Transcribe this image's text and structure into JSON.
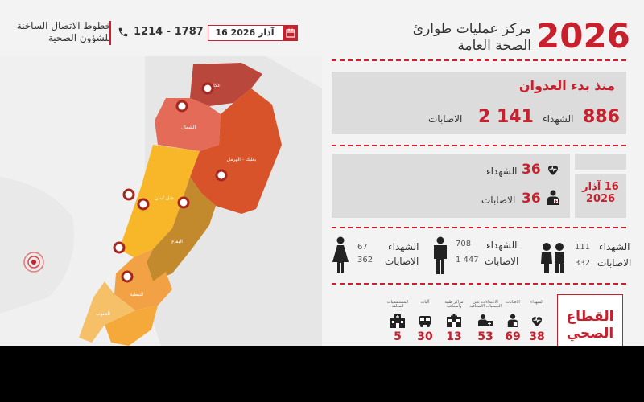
{
  "header": {
    "year": "2026",
    "title_line1": "مركز عمليات طوارئ",
    "title_line2": "الصحة العامة",
    "date": "16 آذار 2026",
    "hotline_title_line1": "خطوط الاتصال الساخنة",
    "hotline_title_line2": "للشؤون الصحية",
    "hotline_numbers": "1214 - 1787"
  },
  "since_start": {
    "heading": "منذ بدء العدوان",
    "deaths_value": "886",
    "deaths_label": "الشهداء",
    "injuries_value": "2 141",
    "injuries_label": "الاصابات"
  },
  "today": {
    "date_line1": "16 آذار",
    "date_line2": "2026",
    "deaths_value": "36",
    "deaths_label": "الشهداء",
    "injuries_value": "36",
    "injuries_label": "الاصابات"
  },
  "demographics": [
    {
      "icon": "children-icon",
      "deaths_label": "الشهداء",
      "deaths_value": "111",
      "injuries_label": "الاصابات",
      "injuries_value": "332"
    },
    {
      "icon": "man-icon",
      "deaths_label": "الشهداء",
      "deaths_value": "708",
      "injuries_label": "الاصابات",
      "injuries_value": "1 447"
    },
    {
      "icon": "woman-icon",
      "deaths_label": "الشهداء",
      "deaths_value": "67",
      "injuries_label": "الاصابات",
      "injuries_value": "362"
    }
  ],
  "health_sector": {
    "title_line1": "القطاع",
    "title_line2": "الصحي",
    "items": [
      {
        "label": "الشهداء",
        "icon": "heart-icon",
        "value": "38"
      },
      {
        "label": "الاصابات",
        "icon": "medic-icon",
        "value": "69"
      },
      {
        "label": "الاعتداءات على الجمعيات الاسعافية",
        "icon": "ambulance-attack-icon",
        "value": "53"
      },
      {
        "label": "مراكز طبية واسعافية",
        "icon": "medical-center-icon",
        "value": "13"
      },
      {
        "label": "آليات",
        "icon": "vehicle-icon",
        "value": "30"
      },
      {
        "label": "المستشفيات المغلقة",
        "icon": "hospital-icon",
        "value": "5"
      }
    ]
  },
  "map": {
    "regions": [
      {
        "id": "akkar",
        "label": "عكار",
        "color": "#b9473c"
      },
      {
        "id": "north",
        "label": "الشمال",
        "color": "#e46b58"
      },
      {
        "id": "baalbek",
        "label": "بعلبك - الهرمل",
        "color": "#d9532a"
      },
      {
        "id": "mount",
        "label": "جبل لبنان",
        "color": "#f7b728"
      },
      {
        "id": "beqaa",
        "label": "البقاع",
        "color": "#c28a2c"
      },
      {
        "id": "south",
        "label": "الجنوب",
        "color": "#f2a244"
      },
      {
        "id": "nabatieh",
        "label": "النبطية",
        "color": "#f5c067"
      }
    ]
  }
}
